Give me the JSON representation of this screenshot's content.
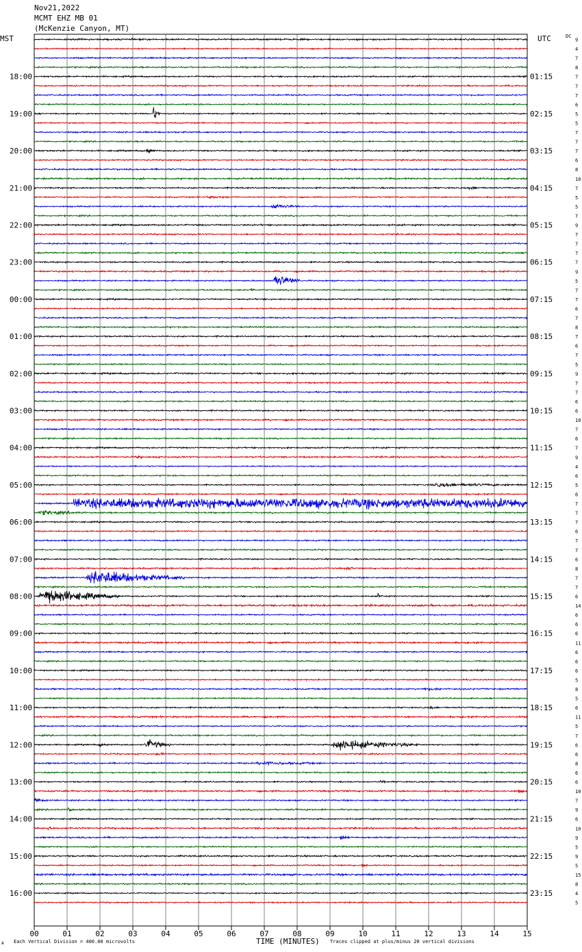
{
  "header": {
    "date": "Nov21,2022",
    "station": "MCMT EHZ MB 01",
    "location": "(McKenzie Canyon, MT)"
  },
  "tz_left": "MST",
  "tz_right": "UTC",
  "dc_label": "DC",
  "footer": {
    "scale_text": "Each Vertical Division =  400.00 microvolts",
    "clip_text": "Traces clipped at plus/minus 20 vertical divisions",
    "corner_mark": "A"
  },
  "chart_data": {
    "type": "helicorder",
    "title": "",
    "xlabel": "TIME (MINUTES)",
    "x_ticks": [
      "00",
      "01",
      "02",
      "03",
      "04",
      "05",
      "06",
      "07",
      "08",
      "09",
      "10",
      "11",
      "12",
      "13",
      "14",
      "15"
    ],
    "xlim": [
      0,
      15
    ],
    "grid": true,
    "trace_colors": [
      "#000000",
      "#dd0000",
      "#0000dd",
      "#006600"
    ],
    "left_hour_labels": [
      "18:00",
      "19:00",
      "20:00",
      "21:00",
      "22:00",
      "23:00",
      "00:00",
      "01:00",
      "02:00",
      "03:00",
      "04:00",
      "05:00",
      "06:00",
      "07:00",
      "08:00",
      "09:00",
      "10:00",
      "11:00",
      "12:00",
      "13:00",
      "14:00",
      "15:00",
      "16:00"
    ],
    "right_hour_labels": [
      "01:15",
      "02:15",
      "03:15",
      "04:15",
      "05:15",
      "06:15",
      "07:15",
      "08:15",
      "09:15",
      "10:15",
      "11:15",
      "12:15",
      "13:15",
      "14:15",
      "15:15",
      "16:15",
      "17:15",
      "18:15",
      "19:15",
      "20:15",
      "21:15",
      "22:15",
      "23:15"
    ],
    "dc_values": [
      9,
      4,
      7,
      8,
      7,
      7,
      7,
      6,
      5,
      5,
      7,
      7,
      7,
      6,
      8,
      10,
      7,
      5,
      5,
      7,
      9,
      7,
      7,
      7,
      7,
      9,
      5,
      7,
      7,
      6,
      7,
      8,
      7,
      6,
      7,
      5,
      9,
      7,
      7,
      6,
      6,
      10,
      7,
      6,
      7,
      9,
      4,
      6,
      5,
      6,
      7,
      7,
      7,
      6,
      7,
      7,
      6,
      8,
      7,
      7,
      6,
      14,
      6,
      6,
      6,
      11,
      6,
      6,
      6,
      5,
      8,
      5,
      6,
      11,
      5,
      7,
      6,
      6,
      8,
      6,
      6,
      10,
      7,
      9,
      6,
      10,
      9,
      5,
      9,
      5,
      15,
      8,
      4,
      5
    ],
    "events": [
      {
        "trace": 8,
        "minute": 3.6,
        "duration": 0.25,
        "amp": 3.0
      },
      {
        "trace": 12,
        "minute": 3.4,
        "duration": 0.3,
        "amp": 1.3
      },
      {
        "trace": 16,
        "minute": 13.2,
        "duration": 0.4,
        "amp": 0.6
      },
      {
        "trace": 17,
        "minute": 5.2,
        "duration": 0.8,
        "amp": 0.4
      },
      {
        "trace": 18,
        "minute": 7.2,
        "duration": 0.9,
        "amp": 1.0
      },
      {
        "trace": 26,
        "minute": 7.25,
        "duration": 0.9,
        "amp": 3.0
      },
      {
        "trace": 27,
        "minute": 6.55,
        "duration": 0.2,
        "amp": 0.7
      },
      {
        "trace": 45,
        "minute": 3.1,
        "duration": 0.3,
        "amp": 0.4
      },
      {
        "trace": 48,
        "minute": 12.0,
        "duration": 3.0,
        "amp": 0.6
      },
      {
        "trace": 50,
        "minute": 1.2,
        "duration": 13.8,
        "amp": 1.4
      },
      {
        "trace": 51,
        "minute": 0.1,
        "duration": 1.5,
        "amp": 0.8
      },
      {
        "trace": 57,
        "minute": 9.5,
        "duration": 0.2,
        "amp": 0.9
      },
      {
        "trace": 58,
        "minute": 1.55,
        "duration": 3.0,
        "amp": 3.2
      },
      {
        "trace": 60,
        "minute": 0.1,
        "duration": 2.5,
        "amp": 3.2
      },
      {
        "trace": 60,
        "minute": 10.45,
        "duration": 0.15,
        "amp": 1.2
      },
      {
        "trace": 70,
        "minute": 11.8,
        "duration": 0.8,
        "amp": 0.5
      },
      {
        "trace": 72,
        "minute": 12.0,
        "duration": 0.3,
        "amp": 0.5
      },
      {
        "trace": 76,
        "minute": 1.95,
        "duration": 0.3,
        "amp": 0.6
      },
      {
        "trace": 76,
        "minute": 3.35,
        "duration": 0.8,
        "amp": 2.0
      },
      {
        "trace": 76,
        "minute": 9.0,
        "duration": 2.7,
        "amp": 2.2
      },
      {
        "trace": 77,
        "minute": 3.7,
        "duration": 0.3,
        "amp": 0.6
      },
      {
        "trace": 78,
        "minute": 6.7,
        "duration": 2.0,
        "amp": 0.6
      },
      {
        "trace": 80,
        "minute": 10.5,
        "duration": 0.2,
        "amp": 0.6
      },
      {
        "trace": 81,
        "minute": 14.7,
        "duration": 0.3,
        "amp": 0.6
      },
      {
        "trace": 82,
        "minute": 0.0,
        "duration": 0.4,
        "amp": 0.5
      },
      {
        "trace": 83,
        "minute": 1.0,
        "duration": 0.2,
        "amp": 1.2
      },
      {
        "trace": 85,
        "minute": 0.4,
        "duration": 0.2,
        "amp": 0.6
      },
      {
        "trace": 86,
        "minute": 9.3,
        "duration": 0.3,
        "amp": 1.0
      },
      {
        "trace": 89,
        "minute": 9.95,
        "duration": 0.2,
        "amp": 0.9
      }
    ]
  }
}
